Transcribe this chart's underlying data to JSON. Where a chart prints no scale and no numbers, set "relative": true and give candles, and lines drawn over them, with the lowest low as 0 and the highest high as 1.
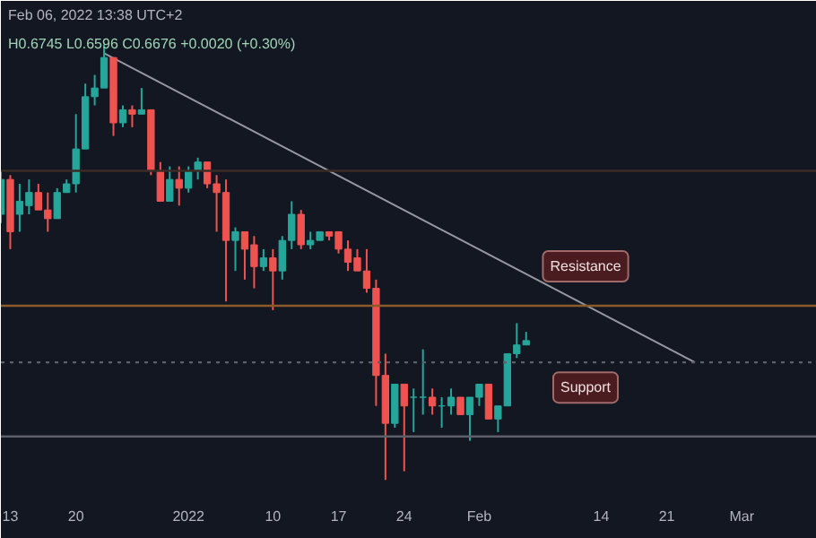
{
  "chart_data": {
    "type": "candlestick",
    "relative": true,
    "grid": false,
    "x": [
      "2021-12-12",
      "2021-12-13",
      "2021-12-14",
      "2021-12-15",
      "2021-12-16",
      "2021-12-17",
      "2021-12-18",
      "2021-12-19",
      "2021-12-20",
      "2021-12-21",
      "2021-12-22",
      "2021-12-23",
      "2021-12-24",
      "2021-12-25",
      "2021-12-26",
      "2021-12-27",
      "2021-12-28",
      "2021-12-29",
      "2021-12-30",
      "2021-12-31",
      "2022-01-01",
      "2022-01-02",
      "2022-01-03",
      "2022-01-04",
      "2022-01-05",
      "2022-01-06",
      "2022-01-07",
      "2022-01-08",
      "2022-01-09",
      "2022-01-10",
      "2022-01-11",
      "2022-01-12",
      "2022-01-13",
      "2022-01-14",
      "2022-01-15",
      "2022-01-16",
      "2022-01-17",
      "2022-01-18",
      "2022-01-19",
      "2022-01-20",
      "2022-01-21",
      "2022-01-22",
      "2022-01-23",
      "2022-01-24",
      "2022-01-25",
      "2022-01-26",
      "2022-01-27",
      "2022-01-28",
      "2022-01-29",
      "2022-01-30",
      "2022-01-31",
      "2022-02-01",
      "2022-02-02",
      "2022-02-03",
      "2022-02-04",
      "2022-02-05",
      "2022-02-06"
    ],
    "ohlc": [
      [
        0.61,
        0.71,
        0.59,
        0.69
      ],
      [
        0.69,
        0.7,
        0.53,
        0.57
      ],
      [
        0.61,
        0.68,
        0.57,
        0.64
      ],
      [
        0.63,
        0.69,
        0.61,
        0.66
      ],
      [
        0.66,
        0.68,
        0.62,
        0.62
      ],
      [
        0.62,
        0.66,
        0.57,
        0.6
      ],
      [
        0.6,
        0.67,
        0.6,
        0.66
      ],
      [
        0.66,
        0.69,
        0.66,
        0.68
      ],
      [
        0.68,
        0.84,
        0.66,
        0.76
      ],
      [
        0.76,
        0.91,
        0.76,
        0.88
      ],
      [
        0.88,
        0.93,
        0.86,
        0.9
      ],
      [
        0.9,
        1.0,
        0.9,
        0.97
      ],
      [
        0.97,
        0.97,
        0.79,
        0.82
      ],
      [
        0.82,
        0.86,
        0.81,
        0.85
      ],
      [
        0.85,
        0.86,
        0.81,
        0.84
      ],
      [
        0.84,
        0.9,
        0.84,
        0.85
      ],
      [
        0.85,
        0.85,
        0.7,
        0.71
      ],
      [
        0.71,
        0.73,
        0.64,
        0.64
      ],
      [
        0.64,
        0.72,
        0.64,
        0.69
      ],
      [
        0.69,
        0.72,
        0.63,
        0.67
      ],
      [
        0.67,
        0.72,
        0.66,
        0.71
      ],
      [
        0.71,
        0.74,
        0.69,
        0.73
      ],
      [
        0.73,
        0.73,
        0.67,
        0.68
      ],
      [
        0.68,
        0.7,
        0.57,
        0.66
      ],
      [
        0.66,
        0.69,
        0.41,
        0.55
      ],
      [
        0.55,
        0.58,
        0.48,
        0.57
      ],
      [
        0.57,
        0.57,
        0.46,
        0.53
      ],
      [
        0.54,
        0.56,
        0.44,
        0.49
      ],
      [
        0.49,
        0.53,
        0.48,
        0.51
      ],
      [
        0.51,
        0.53,
        0.39,
        0.48
      ],
      [
        0.48,
        0.56,
        0.46,
        0.55
      ],
      [
        0.55,
        0.64,
        0.53,
        0.61
      ],
      [
        0.61,
        0.62,
        0.53,
        0.54
      ],
      [
        0.54,
        0.57,
        0.53,
        0.55
      ],
      [
        0.55,
        0.57,
        0.55,
        0.57
      ],
      [
        0.57,
        0.57,
        0.55,
        0.56
      ],
      [
        0.57,
        0.57,
        0.52,
        0.53
      ],
      [
        0.53,
        0.55,
        0.48,
        0.5
      ],
      [
        0.51,
        0.53,
        0.48,
        0.48
      ],
      [
        0.48,
        0.53,
        0.43,
        0.44
      ],
      [
        0.44,
        0.46,
        0.17,
        0.24
      ],
      [
        0.24,
        0.29,
        0.0,
        0.13
      ],
      [
        0.13,
        0.22,
        0.12,
        0.22
      ],
      [
        0.22,
        0.22,
        0.02,
        0.17
      ],
      [
        0.19,
        0.21,
        0.11,
        0.19
      ],
      [
        0.19,
        0.3,
        0.15,
        0.19
      ],
      [
        0.19,
        0.21,
        0.15,
        0.17
      ],
      [
        0.17,
        0.19,
        0.12,
        0.17
      ],
      [
        0.17,
        0.21,
        0.15,
        0.19
      ],
      [
        0.19,
        0.19,
        0.15,
        0.15
      ],
      [
        0.15,
        0.19,
        0.09,
        0.19
      ],
      [
        0.19,
        0.22,
        0.17,
        0.22
      ],
      [
        0.22,
        0.22,
        0.14,
        0.14
      ],
      [
        0.14,
        0.17,
        0.11,
        0.17
      ],
      [
        0.17,
        0.29,
        0.17,
        0.29
      ],
      [
        0.29,
        0.36,
        0.28,
        0.31
      ],
      [
        0.31,
        0.34,
        0.31,
        0.32
      ]
    ],
    "colors": [
      "#26a69a",
      "#ef5350",
      "#26a69a",
      "#26a69a",
      "#ef5350",
      "#ef5350",
      "#26a69a",
      "#26a69a",
      "#26a69a",
      "#26a69a",
      "#26a69a",
      "#26a69a",
      "#ef5350",
      "#26a69a",
      "#ef5350",
      "#26a69a",
      "#ef5350",
      "#ef5350",
      "#26a69a",
      "#ef5350",
      "#26a69a",
      "#26a69a",
      "#ef5350",
      "#ef5350",
      "#ef5350",
      "#26a69a",
      "#ef5350",
      "#ef5350",
      "#26a69a",
      "#ef5350",
      "#26a69a",
      "#26a69a",
      "#ef5350",
      "#26a69a",
      "#26a69a",
      "#ef5350",
      "#ef5350",
      "#ef5350",
      "#ef5350",
      "#ef5350",
      "#ef5350",
      "#ef5350",
      "#26a69a",
      "#ef5350",
      "#26a69a",
      "#26a69a",
      "#ef5350",
      "#26a69a",
      "#26a69a",
      "#ef5350",
      "#26a69a",
      "#26a69a",
      "#ef5350",
      "#26a69a",
      "#26a69a",
      "#26a69a",
      "#26a69a"
    ],
    "series": [
      {
        "type": "line",
        "color": "#9598a1",
        "x": [
          "2021-12-23",
          "2022-02-24"
        ],
        "values": [
          0.98,
          0.27
        ]
      }
    ],
    "xlim": [
      "2021-12-12",
      "2022-03-09"
    ],
    "xticks": [
      {
        "value": "2021-12-13",
        "label": "13"
      },
      {
        "value": "2021-12-20",
        "label": "20"
      },
      {
        "value": "2022-01-01",
        "label": "2022"
      },
      {
        "value": "2022-01-10",
        "label": "10"
      },
      {
        "value": "2022-01-17",
        "label": "17"
      },
      {
        "value": "2022-01-24",
        "label": "24"
      },
      {
        "value": "2022-02-01",
        "label": "Feb"
      },
      {
        "value": "2022-02-14",
        "label": "14"
      },
      {
        "value": "2022-02-21",
        "label": "21"
      },
      {
        "value": "2022-03-01",
        "label": "Mar"
      }
    ],
    "ref_lines": [
      {
        "axis": "y",
        "value": 0.71,
        "color": "#3b2b25",
        "line_style": "solid"
      },
      {
        "axis": "y",
        "value": 0.4,
        "color": "#8a5a2b",
        "line_style": "solid",
        "label": "Resistance"
      },
      {
        "axis": "y",
        "value": 0.27,
        "color": "#5d606b",
        "line_style": "dotted",
        "label": "Support"
      },
      {
        "axis": "y",
        "value": 0.1,
        "color": "#5d606b",
        "line_style": "solid"
      }
    ],
    "annotations": [
      "Feb 06, 2022 13:38 UTC+2",
      "H0.6745 L0.6596 C0.6676 +0.0020 (+0.30%)"
    ]
  }
}
